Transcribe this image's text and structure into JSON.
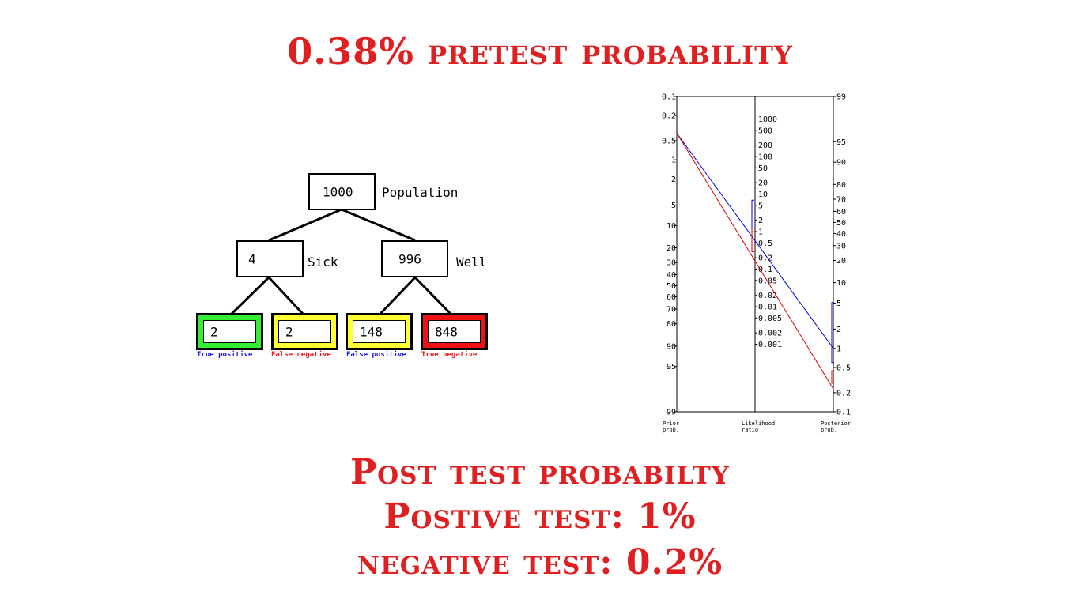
{
  "title": "0.38% pretest probability",
  "tree": {
    "root": {
      "value": "1000",
      "label": "Population"
    },
    "sick": {
      "value": "4",
      "label": "Sick"
    },
    "well": {
      "value": "996",
      "label": "Well"
    },
    "leaves": [
      {
        "value": "2",
        "caption": "True positive",
        "fill": "#33ee33",
        "caption_color": "#1a1aee"
      },
      {
        "value": "2",
        "caption": "False negative",
        "fill": "#ffff33",
        "caption_color": "#ee1a1a"
      },
      {
        "value": "148",
        "caption": "False positive",
        "fill": "#ffff33",
        "caption_color": "#1a1aee"
      },
      {
        "value": "848",
        "caption": "True negative",
        "fill": "#ee1111",
        "caption_color": "#ee1a1a"
      }
    ]
  },
  "nomogram": {
    "prior_ticks": [
      "0.1",
      "0.2",
      "0.5",
      "1",
      "2",
      "5",
      "10",
      "20",
      "30",
      "40",
      "50",
      "60",
      "70",
      "80",
      "90",
      "95",
      "99"
    ],
    "lr_ticks": [
      "1000",
      "500",
      "200",
      "100",
      "50",
      "20",
      "10",
      "5",
      "2",
      "1",
      "0.5",
      "0.2",
      "0.1",
      "0.05",
      "0.02",
      "0.01",
      "0.005",
      "0.002",
      "0.001"
    ],
    "post_ticks": [
      "99",
      "95",
      "90",
      "80",
      "70",
      "60",
      "50",
      "40",
      "30",
      "20",
      "10",
      "5",
      "2",
      "1",
      "0.5",
      "0.2",
      "0.1"
    ],
    "axis_titles": {
      "prior": [
        "Prior",
        "prob."
      ],
      "lr": [
        "Likelihood",
        "ratio"
      ],
      "post": [
        "Posterior",
        "prob."
      ]
    },
    "prior_value": 0.38,
    "lines": [
      {
        "name": "positive",
        "lr": 2.6,
        "posterior": 1.0,
        "color": "#0000dd"
      },
      {
        "name": "negative",
        "lr": 0.6,
        "posterior": 0.23,
        "color": "#dd0000"
      }
    ]
  },
  "post": {
    "line1": "Post test probabilty",
    "line2": "Postive test: 1%",
    "line3": "negative test: 0.2%"
  }
}
